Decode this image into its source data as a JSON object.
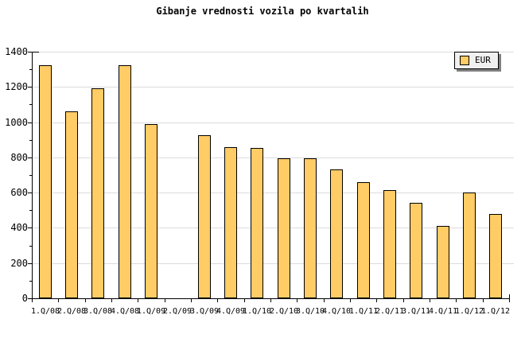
{
  "colors": {
    "background": "#FFFFFF",
    "bar_fill": "#FFCC66",
    "bar_border": "#000000",
    "grid": "#DCDCDC",
    "axis": "#000000",
    "legend_bg": "#F0F0F0",
    "legend_border": "#000000",
    "legend_shadow": "#808080"
  },
  "chart_data": {
    "type": "bar",
    "title": "Gibanje vrednosti vozila po kvartalih",
    "xlabel": "",
    "ylabel": "",
    "categories": [
      "1.Q/08",
      "2.Q/08",
      "3.Q/08",
      "4.Q/08",
      "1.Q/09",
      "2.Q/09",
      "3.Q/09",
      "4.Q/09",
      "1.Q/10",
      "2.Q/10",
      "3.Q/10",
      "4.Q/10",
      "1.Q/11",
      "2.Q/11",
      "3.Q/11",
      "4.Q/11",
      "1.Q/12",
      "1.Q/12"
    ],
    "series": [
      {
        "name": "EUR",
        "values": [
          1325,
          1060,
          1190,
          1325,
          990,
          0,
          925,
          860,
          855,
          795,
          795,
          730,
          660,
          615,
          540,
          410,
          600,
          480
        ]
      }
    ],
    "ylim": [
      0,
      1400
    ],
    "ytick_major": 200,
    "ytick_minor": 100,
    "y_tick_labels": [
      "0",
      "200",
      "400",
      "600",
      "800",
      "1000",
      "1200",
      "1400"
    ],
    "grid": "horizontal-major",
    "legend_position": "top-right"
  }
}
